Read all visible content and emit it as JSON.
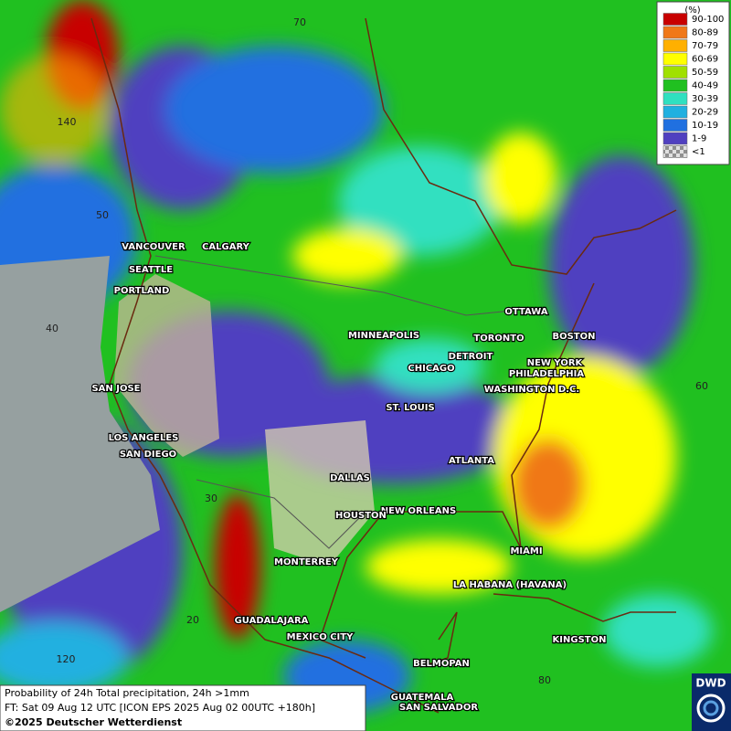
{
  "legend": {
    "unit": "(%)",
    "classes": [
      {
        "label": "90-100",
        "color": "#c80000"
      },
      {
        "label": "80-89",
        "color": "#f07818"
      },
      {
        "label": "70-79",
        "color": "#ffb000"
      },
      {
        "label": "60-69",
        "color": "#ffff00"
      },
      {
        "label": "50-59",
        "color": "#a0e000"
      },
      {
        "label": "40-49",
        "color": "#20c020"
      },
      {
        "label": "30-39",
        "color": "#30e0c0"
      },
      {
        "label": "20-29",
        "color": "#20b0e0"
      },
      {
        "label": "10-19",
        "color": "#2070e0"
      },
      {
        "label": "1-9",
        "color": "#5040c0"
      },
      {
        "label": "<1",
        "color": "#b0b0b0"
      }
    ]
  },
  "cities": [
    "VANCOUVER",
    "CALGARY",
    "SEATTLE",
    "PORTLAND",
    "MINNEAPOLIS",
    "OTTAWA",
    "TORONTO",
    "BOSTON",
    "DETROIT",
    "NEW YORK",
    "CHICAGO",
    "PHILADELPHIA",
    "SAN JOSE",
    "WASHINGTON D.C.",
    "ST. LOUIS",
    "LOS ANGELES",
    "SAN DIEGO",
    "ATLANTA",
    "DALLAS",
    "NEW ORLEANS",
    "HOUSTON",
    "MIAMI",
    "MONTERREY",
    "LA HABANA (HAVANA)",
    "GUADALAJARA",
    "MEXICO CITY",
    "KINGSTON",
    "BELMOPAN",
    "GUATEMALA",
    "SAN SALVADOR"
  ],
  "grid_labels": [
    "70",
    "140",
    "50",
    "40",
    "60",
    "30",
    "20",
    "120",
    "80"
  ],
  "footer": {
    "line1": "Probability of 24h Total precipitation, 24h >1mm",
    "line2": "FT: Sat 09 Aug 12 UTC [ICON EPS 2025 Aug 02 00UTC +180h]",
    "line3": "©2025 Deutscher Wetterdienst"
  },
  "logo": "DWD"
}
